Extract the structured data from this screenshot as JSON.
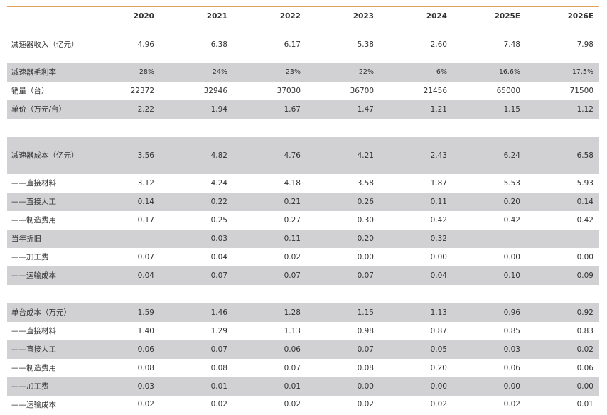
{
  "columns": [
    "",
    "2020",
    "2021",
    "2022",
    "2023",
    "2024",
    "2025E",
    "2026E"
  ],
  "rows": [
    {
      "label": "减速器收入（亿元）",
      "values": [
        "4.96",
        "6.38",
        "6.17",
        "5.38",
        "2.60",
        "7.48",
        "7.98"
      ]
    },
    {
      "label": "减速器毛利率",
      "values": [
        "28%",
        "24%",
        "23%",
        "22%",
        "6%",
        "16.6%",
        "17.5%"
      ]
    },
    {
      "label": "销量（台）",
      "values": [
        "22372",
        "32946",
        "37030",
        "36700",
        "21456",
        "65000",
        "71500"
      ]
    },
    {
      "label": "单价（万元/台）",
      "values": [
        "2.22",
        "1.94",
        "1.67",
        "1.47",
        "1.21",
        "1.15",
        "1.12"
      ]
    },
    {
      "label": "减速器成本（亿元）",
      "values": [
        "3.56",
        "4.82",
        "4.76",
        "4.21",
        "2.43",
        "6.24",
        "6.58"
      ]
    },
    {
      "label": "——直接材料",
      "values": [
        "3.12",
        "4.24",
        "4.18",
        "3.58",
        "1.87",
        "5.53",
        "5.93"
      ]
    },
    {
      "label": "——直接人工",
      "values": [
        "0.14",
        "0.22",
        "0.21",
        "0.26",
        "0.11",
        "0.20",
        "0.14"
      ]
    },
    {
      "label": "——制造费用",
      "values": [
        "0.17",
        "0.25",
        "0.27",
        "0.30",
        "0.42",
        "0.42",
        "0.42"
      ]
    },
    {
      "label": "当年折旧",
      "values": [
        "",
        "0.03",
        "0.11",
        "0.20",
        "0.32",
        "",
        ""
      ]
    },
    {
      "label": "——加工费",
      "values": [
        "0.07",
        "0.04",
        "0.02",
        "0.00",
        "0.00",
        "0.00",
        "0.00"
      ]
    },
    {
      "label": "——运输成本",
      "values": [
        "0.04",
        "0.07",
        "0.07",
        "0.07",
        "0.04",
        "0.10",
        "0.09"
      ]
    },
    {
      "label": "单台成本（万元）",
      "values": [
        "1.59",
        "1.46",
        "1.28",
        "1.15",
        "1.13",
        "0.96",
        "0.92"
      ]
    },
    {
      "label": "——直接材料",
      "values": [
        "1.40",
        "1.29",
        "1.13",
        "0.98",
        "0.87",
        "0.85",
        "0.83"
      ]
    },
    {
      "label": "——直接人工",
      "values": [
        "0.06",
        "0.07",
        "0.06",
        "0.07",
        "0.05",
        "0.03",
        "0.02"
      ]
    },
    {
      "label": "——制造费用",
      "values": [
        "0.08",
        "0.08",
        "0.07",
        "0.08",
        "0.20",
        "0.06",
        "0.06"
      ]
    },
    {
      "label": "——加工费",
      "values": [
        "0.03",
        "0.01",
        "0.01",
        "0.00",
        "0.00",
        "0.00",
        "0.00"
      ]
    },
    {
      "label": "——运输成本",
      "values": [
        "0.02",
        "0.02",
        "0.02",
        "0.02",
        "0.02",
        "0.02",
        "0.01"
      ]
    }
  ],
  "colors": {
    "row_shade": "#d1d1d3",
    "rule": "#e0a060",
    "text": "#333333"
  }
}
